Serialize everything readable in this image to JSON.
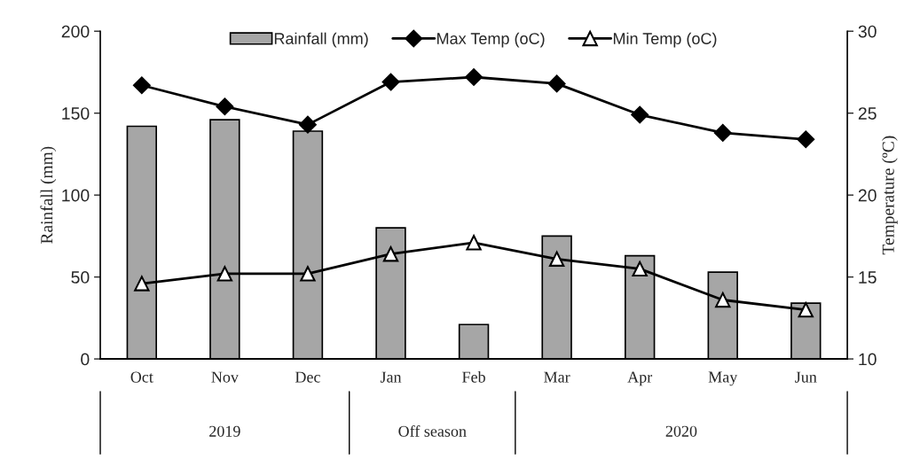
{
  "chart_data": {
    "type": "bar",
    "categories": [
      "Oct",
      "Nov",
      "Dec",
      "Jan",
      "Feb",
      "Mar",
      "Apr",
      "May",
      "Jun"
    ],
    "series": [
      {
        "name": "Rainfall (mm)",
        "color": "#a6a6a6",
        "values": [
          142,
          146,
          139,
          80,
          21,
          75,
          63,
          53,
          34
        ]
      },
      {
        "name": "Max Temp (oC)",
        "type": "line",
        "axis": "y2",
        "marker": "diamond",
        "color": "#000000",
        "values": [
          26.7,
          25.4,
          24.3,
          26.9,
          27.2,
          26.8,
          24.9,
          23.8,
          23.4
        ]
      },
      {
        "name": "Min Temp (oC)",
        "type": "line",
        "axis": "y2",
        "marker": "triangle",
        "color": "#000000",
        "values": [
          14.6,
          15.2,
          15.2,
          16.4,
          17.1,
          16.1,
          15.5,
          13.6,
          13.0
        ]
      }
    ],
    "ylabel": "Rainfall (mm)",
    "y2label": "Temperature (ºC)",
    "ylim": [
      0,
      200
    ],
    "yticks": [
      0,
      50,
      100,
      150,
      200
    ],
    "y2lim": [
      10,
      30
    ],
    "y2ticks": [
      10,
      15,
      20,
      25,
      30
    ],
    "annotations": [
      "2019",
      "Off season",
      "2020"
    ],
    "legend": "top",
    "grid": false
  }
}
